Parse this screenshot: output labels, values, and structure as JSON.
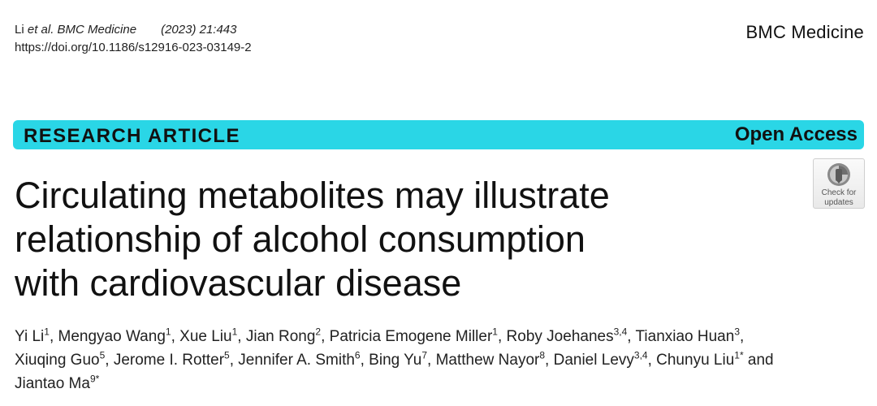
{
  "header": {
    "citation_authors": "Li",
    "citation_etal": "et al. BMC Medicine",
    "citation_year_vol": "(2023) 21:443",
    "doi": "https://doi.org/10.1186/s12916-023-03149-2",
    "journal_name": "BMC Medicine"
  },
  "banner": {
    "article_type": "RESEARCH ARTICLE",
    "access": "Open Access",
    "color": "#2ad6e6"
  },
  "check_badge": {
    "icon": "check-for-updates-icon",
    "line1": "Check for",
    "line2": "updates"
  },
  "title": {
    "line1": "Circulating metabolites may illustrate",
    "line2": "relationship of alcohol consumption",
    "line3": "with cardiovascular disease"
  },
  "authors": {
    "lines": [
      [
        {
          "name": "Yi Li",
          "aff": "1",
          "sep": ", "
        },
        {
          "name": "Mengyao Wang",
          "aff": "1",
          "sep": ", "
        },
        {
          "name": "Xue Liu",
          "aff": "1",
          "sep": ", "
        },
        {
          "name": "Jian Rong",
          "aff": "2",
          "sep": ", "
        },
        {
          "name": "Patricia Emogene Miller",
          "aff": "1",
          "sep": ", "
        },
        {
          "name": "Roby Joehanes",
          "aff": "3,4",
          "sep": ", "
        },
        {
          "name": "Tianxiao Huan",
          "aff": "3",
          "sep": ","
        }
      ],
      [
        {
          "name": "Xiuqing Guo",
          "aff": "5",
          "sep": ", "
        },
        {
          "name": "Jerome I. Rotter",
          "aff": "5",
          "sep": ", "
        },
        {
          "name": "Jennifer A. Smith",
          "aff": "6",
          "sep": ", "
        },
        {
          "name": "Bing Yu",
          "aff": "7",
          "sep": ", "
        },
        {
          "name": "Matthew Nayor",
          "aff": "8",
          "sep": ", "
        },
        {
          "name": "Daniel Levy",
          "aff": "3,4",
          "sep": ", "
        },
        {
          "name": "Chunyu Liu",
          "aff": "1*",
          "sep": " and"
        }
      ],
      [
        {
          "name": "Jiantao Ma",
          "aff": "9*",
          "sep": ""
        }
      ]
    ]
  }
}
